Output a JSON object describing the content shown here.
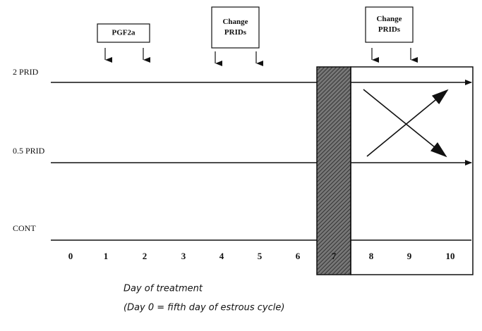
{
  "groups": [
    "2 PRID",
    "0.5 PRID",
    "CONT"
  ],
  "days": [
    0,
    1,
    2,
    3,
    4,
    5,
    6,
    7,
    8,
    9,
    10
  ],
  "events": [
    {
      "lines": [
        "PGF2a"
      ]
    },
    {
      "lines": [
        "Change",
        "PRIDs"
      ]
    },
    {
      "lines": [
        "Change",
        "PRIDs"
      ]
    }
  ],
  "x_axis": {
    "title": "Day of treatment",
    "note": "(Day 0 = fifth day of estrous cycle)"
  }
}
